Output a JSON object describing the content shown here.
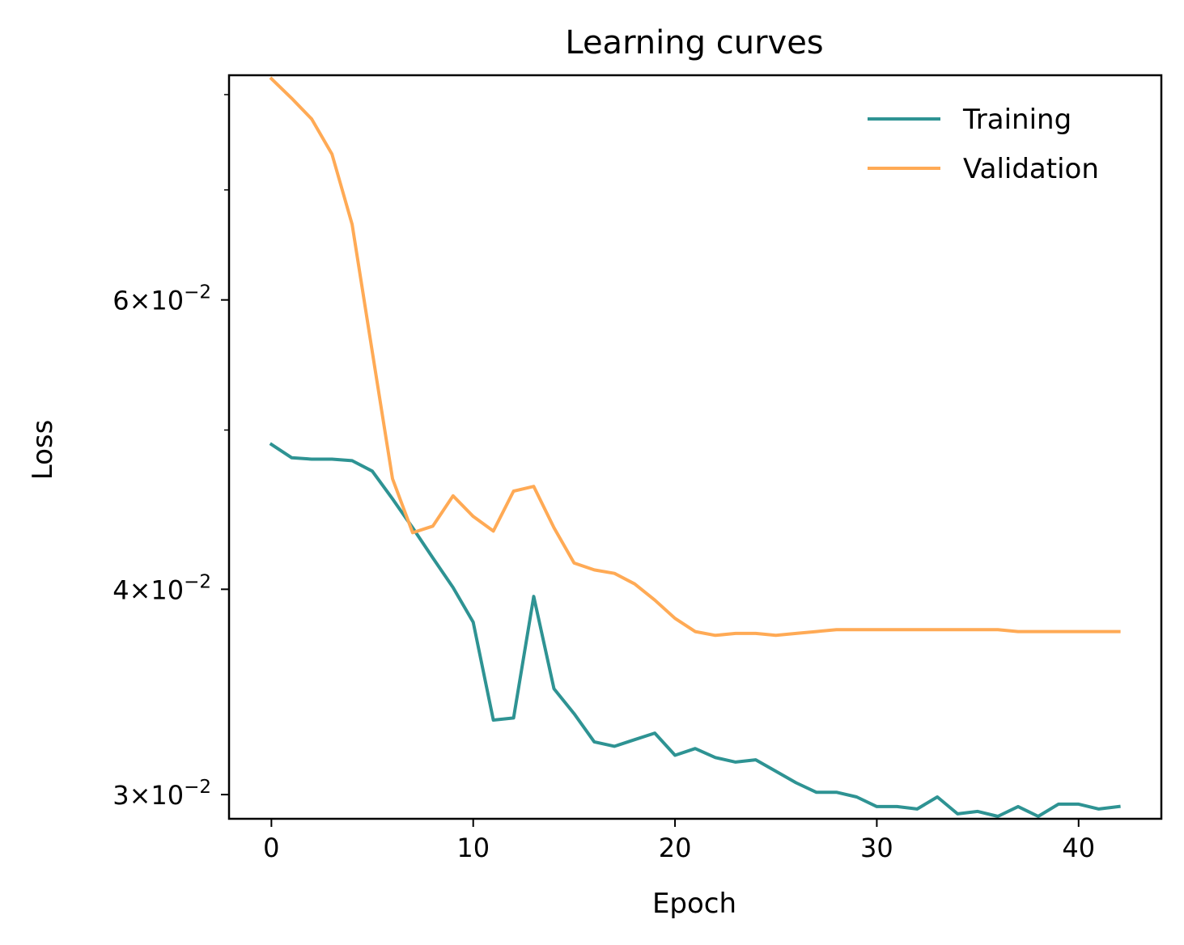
{
  "chart_data": {
    "type": "line",
    "title": "Learning curves",
    "xlabel": "Epoch",
    "ylabel": "Loss",
    "yscale": "log",
    "xlim": [
      -2.1,
      44.1
    ],
    "ylim": [
      0.029,
      0.0822
    ],
    "grid": false,
    "legend_position": "top-right",
    "xticks": [
      0,
      10,
      20,
      30,
      40
    ],
    "yticks": [
      {
        "value": 0.03,
        "mantissa": "3",
        "exponent": "−2"
      },
      {
        "value": 0.04,
        "mantissa": "4",
        "exponent": "−2"
      },
      {
        "value": 0.06,
        "mantissa": "6",
        "exponent": "−2"
      }
    ],
    "yminor_ticks": [
      0.05,
      0.07,
      0.08
    ],
    "series": [
      {
        "name": "Training",
        "color": "#2e9393",
        "x": [
          0,
          1,
          2,
          3,
          4,
          5,
          6,
          7,
          8,
          9,
          10,
          11,
          12,
          13,
          14,
          15,
          16,
          17,
          18,
          19,
          20,
          21,
          22,
          23,
          24,
          25,
          26,
          27,
          28,
          29,
          30,
          31,
          32,
          33,
          34,
          35,
          36,
          37,
          38,
          39,
          40,
          41,
          42
        ],
        "y": [
          0.049,
          0.0481,
          0.048,
          0.048,
          0.0479,
          0.0472,
          0.0454,
          0.0436,
          0.0418,
          0.0401,
          0.0382,
          0.0333,
          0.0334,
          0.0396,
          0.0348,
          0.0336,
          0.0323,
          0.0321,
          0.0324,
          0.0327,
          0.0317,
          0.032,
          0.0316,
          0.0314,
          0.0315,
          0.031,
          0.0305,
          0.0301,
          0.0301,
          0.0299,
          0.0295,
          0.0295,
          0.0294,
          0.0299,
          0.0292,
          0.0293,
          0.0291,
          0.0295,
          0.0291,
          0.0296,
          0.0296,
          0.0294,
          0.0295
        ]
      },
      {
        "name": "Validation",
        "color": "#ffaa55",
        "x": [
          0,
          1,
          2,
          3,
          4,
          5,
          6,
          7,
          8,
          9,
          10,
          11,
          12,
          13,
          14,
          15,
          16,
          17,
          18,
          19,
          20,
          21,
          22,
          23,
          24,
          25,
          26,
          27,
          28,
          29,
          30,
          31,
          32,
          33,
          34,
          35,
          36,
          37,
          38,
          39,
          40,
          41,
          42
        ],
        "y": [
          0.0818,
          0.0796,
          0.0773,
          0.0736,
          0.0667,
          0.0558,
          0.0467,
          0.0433,
          0.0437,
          0.0456,
          0.0443,
          0.0434,
          0.0459,
          0.0462,
          0.0436,
          0.0415,
          0.0411,
          0.0409,
          0.0403,
          0.0394,
          0.0384,
          0.0377,
          0.0375,
          0.0376,
          0.0376,
          0.0375,
          0.0376,
          0.0377,
          0.0378,
          0.0378,
          0.0378,
          0.0378,
          0.0378,
          0.0378,
          0.0378,
          0.0378,
          0.0378,
          0.0377,
          0.0377,
          0.0377,
          0.0377,
          0.0377,
          0.0377
        ]
      }
    ]
  }
}
